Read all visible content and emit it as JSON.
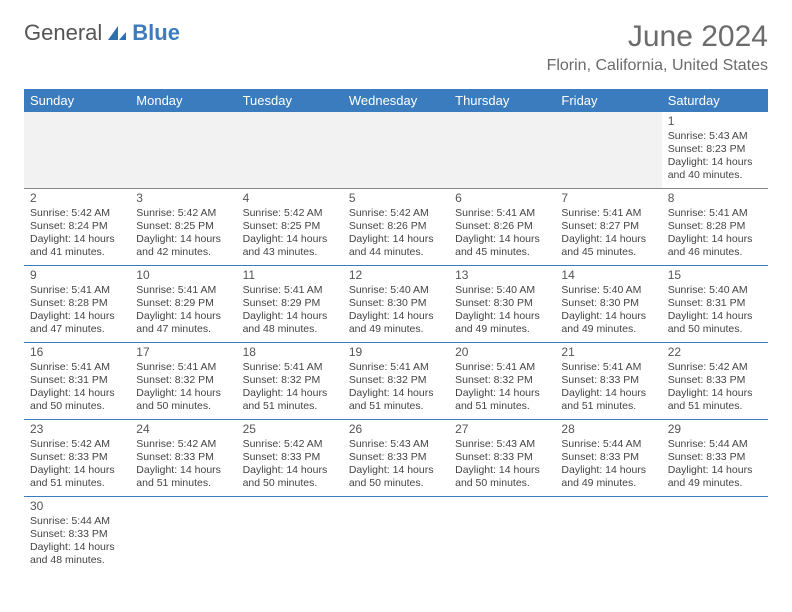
{
  "logo": {
    "text1": "General",
    "text2": "Blue",
    "icon_color": "#2f6fb0"
  },
  "title": "June 2024",
  "location": "Florin, California, United States",
  "header_bg": "#3b7cbf",
  "header_fg": "#ffffff",
  "row_border": "#3b7cbf",
  "lead_bg": "#f2f2f2",
  "day_headers": [
    "Sunday",
    "Monday",
    "Tuesday",
    "Wednesday",
    "Thursday",
    "Friday",
    "Saturday"
  ],
  "weeks": [
    [
      null,
      null,
      null,
      null,
      null,
      null,
      {
        "n": "1",
        "sr": "Sunrise: 5:43 AM",
        "ss": "Sunset: 8:23 PM",
        "d1": "Daylight: 14 hours",
        "d2": "and 40 minutes."
      }
    ],
    [
      {
        "n": "2",
        "sr": "Sunrise: 5:42 AM",
        "ss": "Sunset: 8:24 PM",
        "d1": "Daylight: 14 hours",
        "d2": "and 41 minutes."
      },
      {
        "n": "3",
        "sr": "Sunrise: 5:42 AM",
        "ss": "Sunset: 8:25 PM",
        "d1": "Daylight: 14 hours",
        "d2": "and 42 minutes."
      },
      {
        "n": "4",
        "sr": "Sunrise: 5:42 AM",
        "ss": "Sunset: 8:25 PM",
        "d1": "Daylight: 14 hours",
        "d2": "and 43 minutes."
      },
      {
        "n": "5",
        "sr": "Sunrise: 5:42 AM",
        "ss": "Sunset: 8:26 PM",
        "d1": "Daylight: 14 hours",
        "d2": "and 44 minutes."
      },
      {
        "n": "6",
        "sr": "Sunrise: 5:41 AM",
        "ss": "Sunset: 8:26 PM",
        "d1": "Daylight: 14 hours",
        "d2": "and 45 minutes."
      },
      {
        "n": "7",
        "sr": "Sunrise: 5:41 AM",
        "ss": "Sunset: 8:27 PM",
        "d1": "Daylight: 14 hours",
        "d2": "and 45 minutes."
      },
      {
        "n": "8",
        "sr": "Sunrise: 5:41 AM",
        "ss": "Sunset: 8:28 PM",
        "d1": "Daylight: 14 hours",
        "d2": "and 46 minutes."
      }
    ],
    [
      {
        "n": "9",
        "sr": "Sunrise: 5:41 AM",
        "ss": "Sunset: 8:28 PM",
        "d1": "Daylight: 14 hours",
        "d2": "and 47 minutes."
      },
      {
        "n": "10",
        "sr": "Sunrise: 5:41 AM",
        "ss": "Sunset: 8:29 PM",
        "d1": "Daylight: 14 hours",
        "d2": "and 47 minutes."
      },
      {
        "n": "11",
        "sr": "Sunrise: 5:41 AM",
        "ss": "Sunset: 8:29 PM",
        "d1": "Daylight: 14 hours",
        "d2": "and 48 minutes."
      },
      {
        "n": "12",
        "sr": "Sunrise: 5:40 AM",
        "ss": "Sunset: 8:30 PM",
        "d1": "Daylight: 14 hours",
        "d2": "and 49 minutes."
      },
      {
        "n": "13",
        "sr": "Sunrise: 5:40 AM",
        "ss": "Sunset: 8:30 PM",
        "d1": "Daylight: 14 hours",
        "d2": "and 49 minutes."
      },
      {
        "n": "14",
        "sr": "Sunrise: 5:40 AM",
        "ss": "Sunset: 8:30 PM",
        "d1": "Daylight: 14 hours",
        "d2": "and 49 minutes."
      },
      {
        "n": "15",
        "sr": "Sunrise: 5:40 AM",
        "ss": "Sunset: 8:31 PM",
        "d1": "Daylight: 14 hours",
        "d2": "and 50 minutes."
      }
    ],
    [
      {
        "n": "16",
        "sr": "Sunrise: 5:41 AM",
        "ss": "Sunset: 8:31 PM",
        "d1": "Daylight: 14 hours",
        "d2": "and 50 minutes."
      },
      {
        "n": "17",
        "sr": "Sunrise: 5:41 AM",
        "ss": "Sunset: 8:32 PM",
        "d1": "Daylight: 14 hours",
        "d2": "and 50 minutes."
      },
      {
        "n": "18",
        "sr": "Sunrise: 5:41 AM",
        "ss": "Sunset: 8:32 PM",
        "d1": "Daylight: 14 hours",
        "d2": "and 51 minutes."
      },
      {
        "n": "19",
        "sr": "Sunrise: 5:41 AM",
        "ss": "Sunset: 8:32 PM",
        "d1": "Daylight: 14 hours",
        "d2": "and 51 minutes."
      },
      {
        "n": "20",
        "sr": "Sunrise: 5:41 AM",
        "ss": "Sunset: 8:32 PM",
        "d1": "Daylight: 14 hours",
        "d2": "and 51 minutes."
      },
      {
        "n": "21",
        "sr": "Sunrise: 5:41 AM",
        "ss": "Sunset: 8:33 PM",
        "d1": "Daylight: 14 hours",
        "d2": "and 51 minutes."
      },
      {
        "n": "22",
        "sr": "Sunrise: 5:42 AM",
        "ss": "Sunset: 8:33 PM",
        "d1": "Daylight: 14 hours",
        "d2": "and 51 minutes."
      }
    ],
    [
      {
        "n": "23",
        "sr": "Sunrise: 5:42 AM",
        "ss": "Sunset: 8:33 PM",
        "d1": "Daylight: 14 hours",
        "d2": "and 51 minutes."
      },
      {
        "n": "24",
        "sr": "Sunrise: 5:42 AM",
        "ss": "Sunset: 8:33 PM",
        "d1": "Daylight: 14 hours",
        "d2": "and 51 minutes."
      },
      {
        "n": "25",
        "sr": "Sunrise: 5:42 AM",
        "ss": "Sunset: 8:33 PM",
        "d1": "Daylight: 14 hours",
        "d2": "and 50 minutes."
      },
      {
        "n": "26",
        "sr": "Sunrise: 5:43 AM",
        "ss": "Sunset: 8:33 PM",
        "d1": "Daylight: 14 hours",
        "d2": "and 50 minutes."
      },
      {
        "n": "27",
        "sr": "Sunrise: 5:43 AM",
        "ss": "Sunset: 8:33 PM",
        "d1": "Daylight: 14 hours",
        "d2": "and 50 minutes."
      },
      {
        "n": "28",
        "sr": "Sunrise: 5:44 AM",
        "ss": "Sunset: 8:33 PM",
        "d1": "Daylight: 14 hours",
        "d2": "and 49 minutes."
      },
      {
        "n": "29",
        "sr": "Sunrise: 5:44 AM",
        "ss": "Sunset: 8:33 PM",
        "d1": "Daylight: 14 hours",
        "d2": "and 49 minutes."
      }
    ],
    [
      {
        "n": "30",
        "sr": "Sunrise: 5:44 AM",
        "ss": "Sunset: 8:33 PM",
        "d1": "Daylight: 14 hours",
        "d2": "and 48 minutes."
      },
      null,
      null,
      null,
      null,
      null,
      null
    ]
  ]
}
